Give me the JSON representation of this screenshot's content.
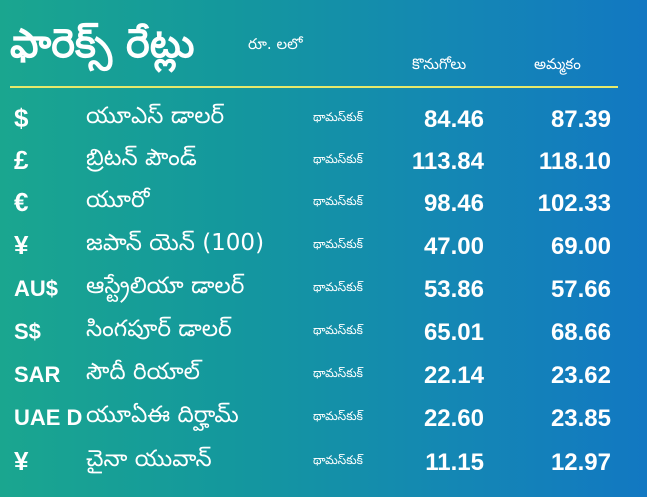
{
  "header": {
    "title": "ఫారెక్స్ రేట్లు",
    "unit": "రూ. లలో",
    "buy_label": "కొనుగోలు",
    "sell_label": "అమ్మకం"
  },
  "rows": [
    {
      "symbol": "$",
      "name": "యూఎస్ డాలర్",
      "source": "థామస్‌కుక్",
      "buy": "84.46",
      "sell": "87.39"
    },
    {
      "symbol": "£",
      "name": "బ్రిటన్ పౌండ్",
      "source": "థామస్‌కుక్",
      "buy": "113.84",
      "sell": "118.10"
    },
    {
      "symbol": "€",
      "name": "యూరో",
      "source": "థామస్‌కుక్",
      "buy": "98.46",
      "sell": "102.33"
    },
    {
      "symbol": "¥",
      "name": "జపాన్ యెన్ (100)",
      "source": "థామస్‌కుక్",
      "buy": "47.00",
      "sell": "69.00"
    },
    {
      "symbol": "AU$",
      "name": "ఆస్ట్రేలియా డాలర్",
      "source": "థామస్‌కుక్",
      "buy": "53.86",
      "sell": "57.66"
    },
    {
      "symbol": "S$",
      "name": "సింగపూర్ డాలర్",
      "source": "థామస్‌కుక్",
      "buy": "65.01",
      "sell": "68.66"
    },
    {
      "symbol": "SAR",
      "name": "సౌదీ రియాల్",
      "source": "థామస్‌కుక్",
      "buy": "22.14",
      "sell": "23.62"
    },
    {
      "symbol": "UAE D",
      "name": "యూఏఈ దిర్హామ్",
      "source": "థామస్‌కుక్",
      "buy": "22.60",
      "sell": "23.85"
    },
    {
      "symbol": "¥",
      "name": "చైనా యువాన్",
      "source": "థామస్‌కుక్",
      "buy": "11.15",
      "sell": "12.97"
    }
  ]
}
